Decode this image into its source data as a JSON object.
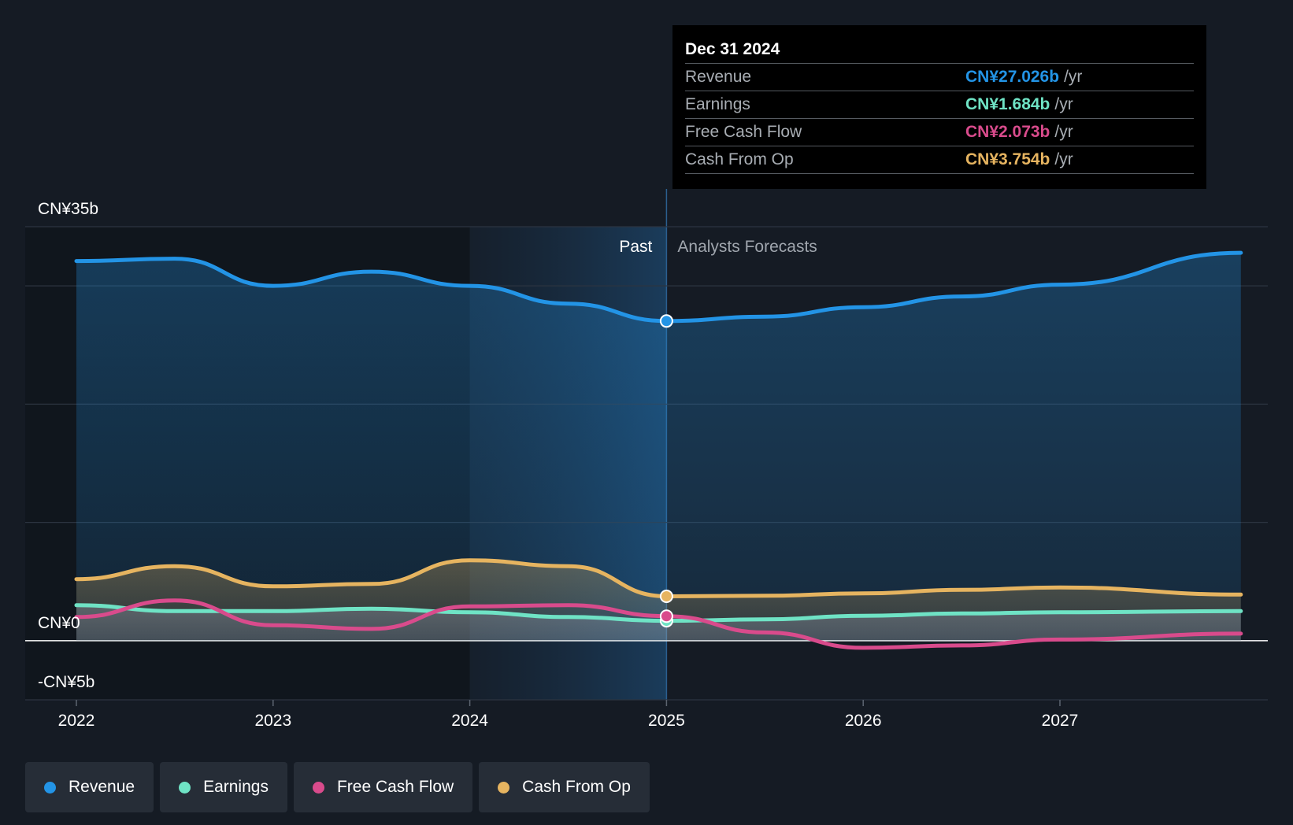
{
  "chart_data": {
    "type": "line",
    "title": "",
    "xlabel": "",
    "ylabel": "",
    "ylim": [
      -5,
      35
    ],
    "xlim": [
      2022,
      2027.92
    ],
    "y_ticks": [
      {
        "value": 35,
        "label": "CN¥35b"
      },
      {
        "value": 0,
        "label": "CN¥0"
      },
      {
        "value": -5,
        "label": "-CN¥5b"
      }
    ],
    "gridlines": [
      35,
      30,
      20,
      10,
      -5
    ],
    "x_ticks": [
      {
        "value": 2022,
        "label": "2022"
      },
      {
        "value": 2023,
        "label": "2023"
      },
      {
        "value": 2024,
        "label": "2024"
      },
      {
        "value": 2025,
        "label": "2025"
      },
      {
        "value": 2026,
        "label": "2026"
      },
      {
        "value": 2027,
        "label": "2027"
      }
    ],
    "past_end": 2025,
    "highlight_start": 2024,
    "past_label": "Past",
    "forecast_label": "Analysts Forecasts",
    "series": [
      {
        "name": "Revenue",
        "color": "#2394e6",
        "points": [
          [
            2022,
            32.1
          ],
          [
            2022.5,
            32.3
          ],
          [
            2023,
            30.0
          ],
          [
            2023.5,
            31.2
          ],
          [
            2024,
            30.0
          ],
          [
            2024.5,
            28.5
          ],
          [
            2025,
            27.026
          ],
          [
            2025.5,
            27.4
          ],
          [
            2026,
            28.2
          ],
          [
            2026.5,
            29.1
          ],
          [
            2027,
            30.1
          ],
          [
            2027.92,
            32.8
          ]
        ]
      },
      {
        "name": "Earnings",
        "color": "#6fe3c5",
        "points": [
          [
            2022,
            3.0
          ],
          [
            2022.5,
            2.5
          ],
          [
            2023,
            2.5
          ],
          [
            2023.5,
            2.7
          ],
          [
            2024,
            2.4
          ],
          [
            2024.5,
            2.0
          ],
          [
            2025,
            1.684
          ],
          [
            2025.5,
            1.8
          ],
          [
            2026,
            2.1
          ],
          [
            2026.5,
            2.3
          ],
          [
            2027,
            2.4
          ],
          [
            2027.92,
            2.5
          ]
        ]
      },
      {
        "name": "Free Cash Flow",
        "color": "#d94b8c",
        "points": [
          [
            2022,
            2.0
          ],
          [
            2022.5,
            3.4
          ],
          [
            2023,
            1.3
          ],
          [
            2023.5,
            1.0
          ],
          [
            2024,
            2.9
          ],
          [
            2024.5,
            3.0
          ],
          [
            2025,
            2.073
          ],
          [
            2025.5,
            0.7
          ],
          [
            2026,
            -0.6
          ],
          [
            2026.5,
            -0.4
          ],
          [
            2027,
            0.1
          ],
          [
            2027.92,
            0.6
          ]
        ]
      },
      {
        "name": "Cash From Op",
        "color": "#e6b460",
        "points": [
          [
            2022,
            5.2
          ],
          [
            2022.5,
            6.3
          ],
          [
            2023,
            4.6
          ],
          [
            2023.5,
            4.8
          ],
          [
            2024,
            6.8
          ],
          [
            2024.5,
            6.3
          ],
          [
            2025,
            3.754
          ],
          [
            2025.5,
            3.8
          ],
          [
            2026,
            4.0
          ],
          [
            2026.5,
            4.3
          ],
          [
            2027,
            4.5
          ],
          [
            2027.92,
            3.9
          ]
        ]
      }
    ]
  },
  "tooltip": {
    "date": "Dec 31 2024",
    "rows": [
      {
        "name": "Revenue",
        "value": "CN¥27.026b",
        "unit": "/yr",
        "color": "#2394e6"
      },
      {
        "name": "Earnings",
        "value": "CN¥1.684b",
        "unit": "/yr",
        "color": "#6fe3c5"
      },
      {
        "name": "Free Cash Flow",
        "value": "CN¥2.073b",
        "unit": "/yr",
        "color": "#d94b8c"
      },
      {
        "name": "Cash From Op",
        "value": "CN¥3.754b",
        "unit": "/yr",
        "color": "#e6b460"
      }
    ]
  },
  "legend": [
    {
      "label": "Revenue",
      "color": "#2394e6"
    },
    {
      "label": "Earnings",
      "color": "#6fe3c5"
    },
    {
      "label": "Free Cash Flow",
      "color": "#d94b8c"
    },
    {
      "label": "Cash From Op",
      "color": "#e6b460"
    }
  ]
}
